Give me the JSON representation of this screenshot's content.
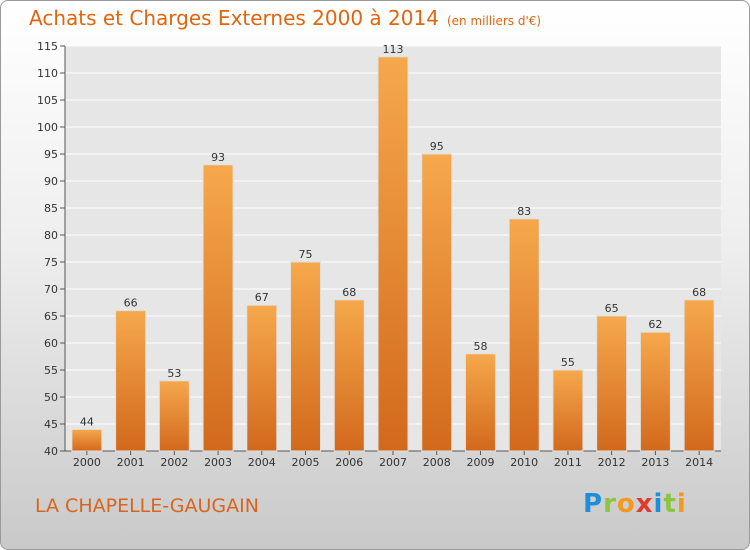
{
  "title": "Achats et Charges Externes 2000 à 2014",
  "unit": "(en milliers d'€)",
  "commune": "LA CHAPELLE-GAUGAIN",
  "brand": {
    "letters": [
      "P",
      "r",
      "o",
      "x",
      "i",
      "t",
      "i"
    ],
    "colors": [
      "#1e8ed8",
      "#8cc63e",
      "#f39a1e",
      "#e03a2e",
      "#1e8ed8",
      "#8cc63e",
      "#f39a1e"
    ]
  },
  "colors": {
    "bar_top": "#f6a84c",
    "bar_bottom": "#d2691c",
    "title": "#e0650e"
  },
  "chart_data": {
    "type": "bar",
    "categories": [
      "2000",
      "2001",
      "2002",
      "2003",
      "2004",
      "2005",
      "2006",
      "2007",
      "2008",
      "2009",
      "2010",
      "2011",
      "2012",
      "2013",
      "2014"
    ],
    "values": [
      44,
      66,
      53,
      93,
      67,
      75,
      68,
      113,
      95,
      58,
      83,
      55,
      65,
      62,
      68
    ],
    "ylim": [
      40,
      115
    ],
    "yticks": [
      40,
      45,
      50,
      55,
      60,
      65,
      70,
      75,
      80,
      85,
      90,
      95,
      100,
      105,
      110,
      115
    ],
    "grid": true,
    "data_labels": true
  }
}
